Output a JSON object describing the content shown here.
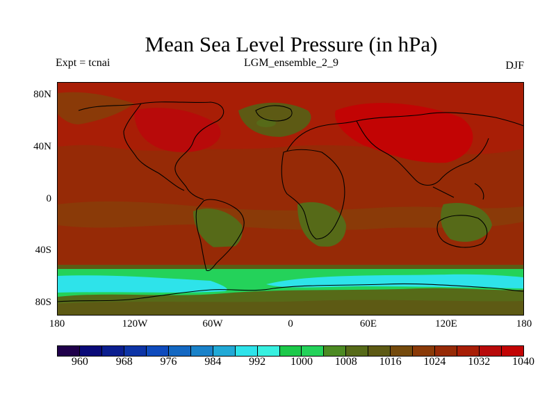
{
  "title": "Mean Sea Level Pressure (in hPa)",
  "left_label": "Expt = tcnai",
  "center_label": "LGM_ensemble_2_9",
  "right_label": "DJF",
  "lat_labels": [
    "80N",
    "40N",
    "0",
    "40S",
    "80S"
  ],
  "lon_labels": [
    "180",
    "120W",
    "60W",
    "0",
    "60E",
    "120E",
    "180"
  ],
  "colorbar": {
    "labels": [
      "960",
      "968",
      "976",
      "984",
      "992",
      "1000",
      "1008",
      "1016",
      "1024",
      "1032",
      "1040"
    ],
    "colors": [
      "#1f004a",
      "#0a0a78",
      "#0b1e8f",
      "#0d34a6",
      "#0f4bbd",
      "#1468c2",
      "#1a82c9",
      "#21a9d6",
      "#2ee3ea",
      "#38f0e0",
      "#1cc94a",
      "#24d25a",
      "#4c8a22",
      "#566a18",
      "#5d5a14",
      "#744a0c",
      "#8a3a08",
      "#962a06",
      "#a81e06",
      "#b80a0a",
      "#c20404"
    ]
  },
  "map_colors": {
    "high_red": "#b80a0a",
    "dark_red": "#962a06",
    "brown_red": "#8a3a08",
    "olive_brown": "#5d5a14",
    "olive_green": "#566a18",
    "green": "#24d25a",
    "cyan": "#2ee3ea"
  }
}
